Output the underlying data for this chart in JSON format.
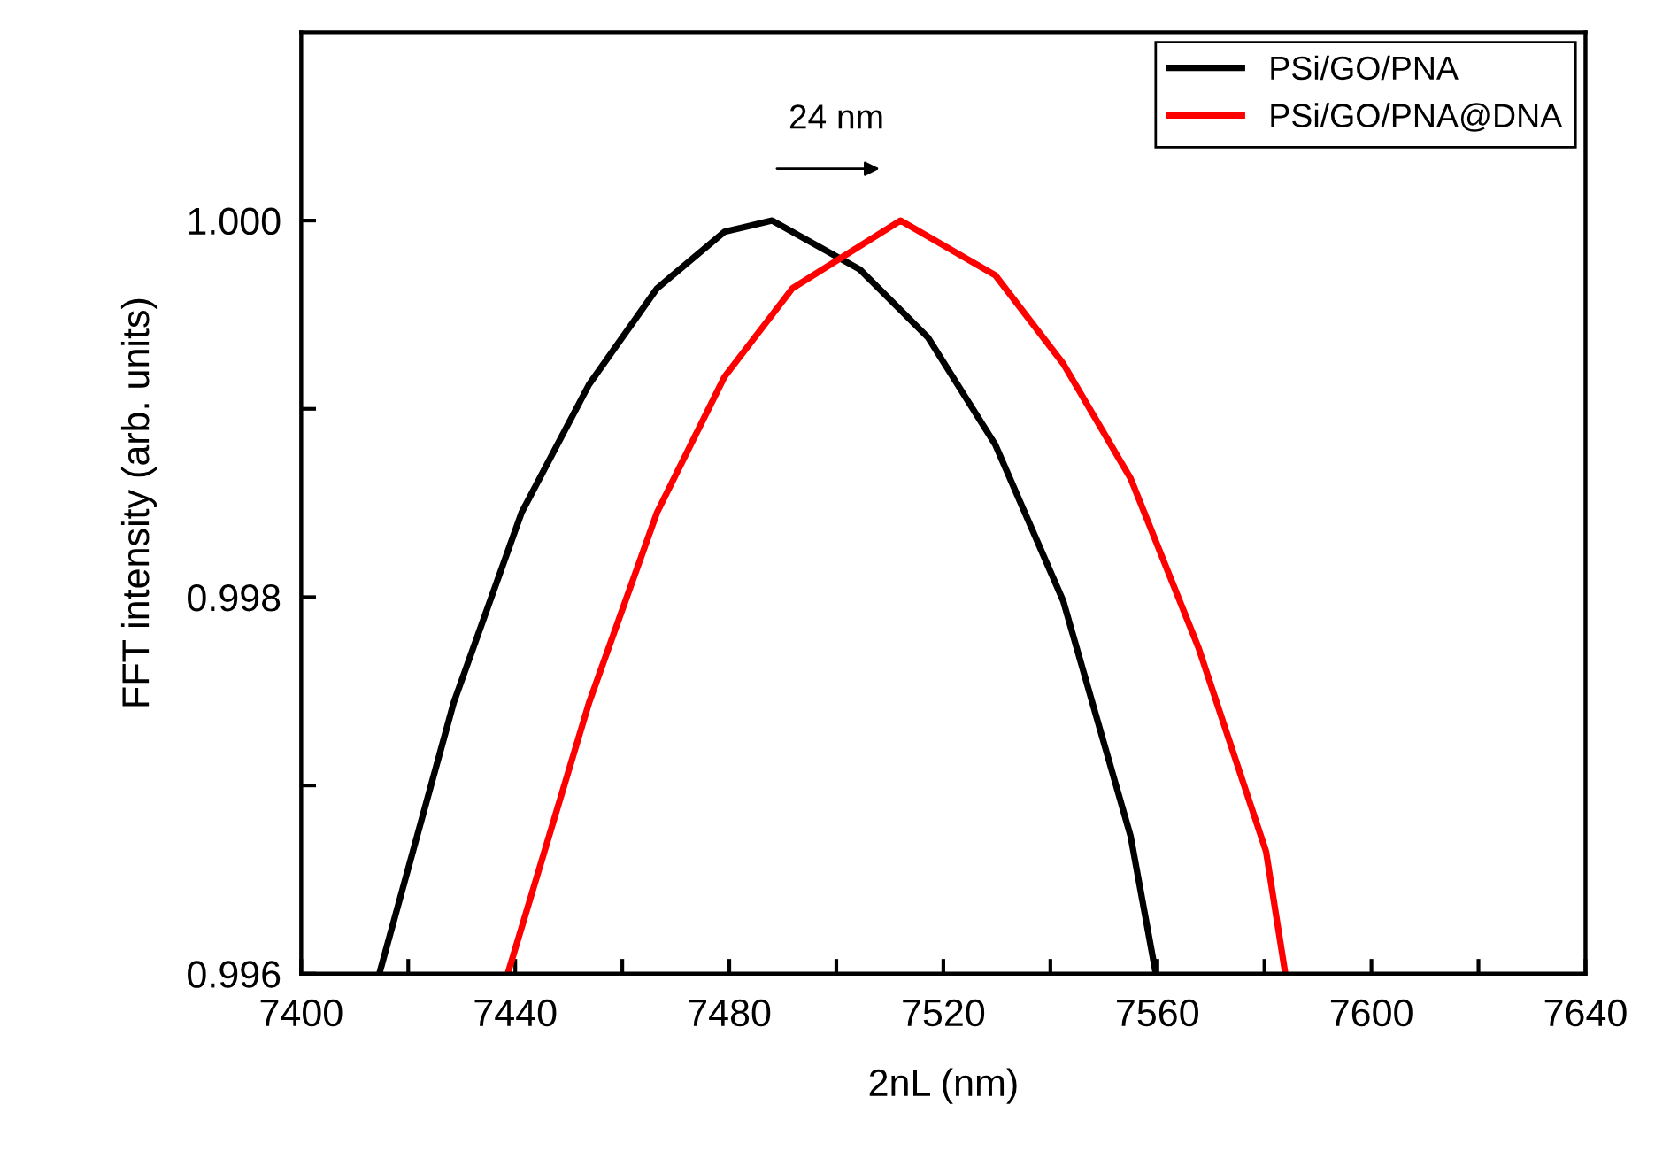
{
  "chart_data": {
    "type": "line",
    "xlabel": "2nL (nm)",
    "ylabel": "FFT intensity (arb. units)",
    "annotations": [
      "24 nm"
    ],
    "xlim": [
      7400,
      7640
    ],
    "ylim": [
      0.996,
      1.001
    ],
    "xticks": [
      7400,
      {
        "value": 7420,
        "label": null
      },
      7440,
      {
        "value": 7460,
        "label": null
      },
      7480,
      {
        "value": 7500,
        "label": null
      },
      7520,
      {
        "value": 7540,
        "label": null
      },
      7560,
      {
        "value": 7580,
        "label": null
      },
      7600,
      {
        "value": 7620,
        "label": null
      },
      7640
    ],
    "yticks": [
      {
        "value": 0.996,
        "label": "0.996"
      },
      {
        "value": 0.997,
        "label": null
      },
      {
        "value": 0.998,
        "label": "0.998"
      },
      {
        "value": 0.999,
        "label": null
      },
      {
        "value": 1.0,
        "label": "1.000"
      }
    ],
    "grid": false,
    "legend": "top right",
    "marker": "none",
    "line_style": "solid",
    "series": [
      {
        "name": "PSi/GO/PNA",
        "color": "#000000",
        "x": [
          7414.6,
          7428.5,
          7441.2,
          7453.8,
          7466.5,
          7479.1,
          7488,
          7504.4,
          7517.1,
          7529.7,
          7542.4,
          7555,
          7559.7
        ],
        "values": [
          0.996,
          0.99744,
          0.99845,
          0.99913,
          0.99964,
          0.99994,
          1.0,
          0.99974,
          0.99938,
          0.99881,
          0.99798,
          0.99673,
          0.996
        ]
      },
      {
        "name": "PSi/GO/PNA@DNA",
        "color": "#ff0000",
        "x": [
          7438.6,
          7453.8,
          7466.5,
          7479.1,
          7491.8,
          7512,
          7529.7,
          7542.4,
          7555,
          7567.7,
          7580.3,
          7583.9
        ],
        "values": [
          0.996,
          0.99744,
          0.99845,
          0.99917,
          0.99964,
          1.0,
          0.99971,
          0.99924,
          0.99863,
          0.99773,
          0.99665,
          0.996
        ]
      }
    ]
  }
}
